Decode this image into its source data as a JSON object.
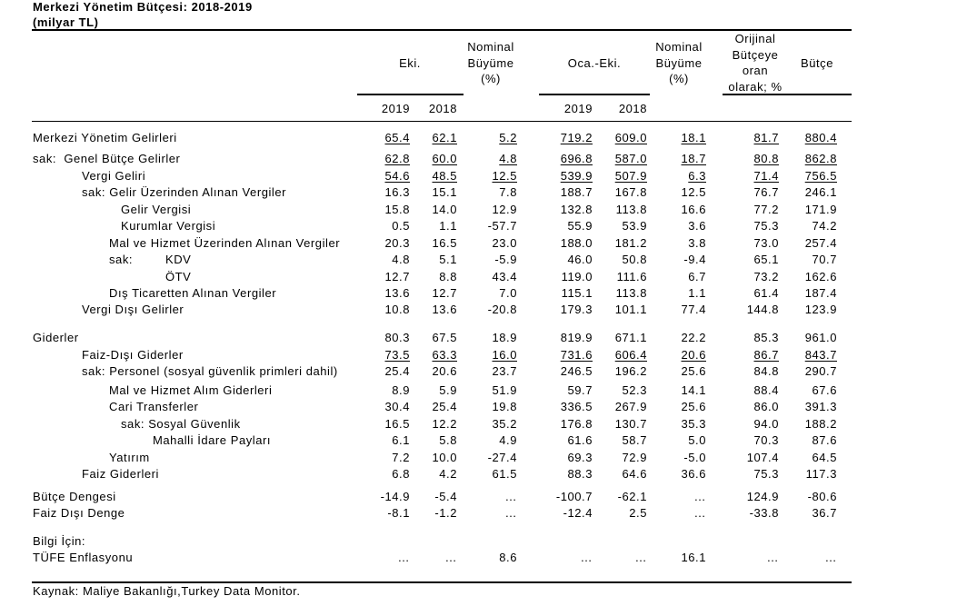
{
  "title": "Merkezi Yönetim Bütçesi: 2018-2019",
  "unit": "(milyar TL)",
  "header": {
    "eki": "Eki.",
    "nominal_growth_eki": [
      "Nominal",
      "Büyüme",
      "(%)"
    ],
    "oca_eki": "Oca.-Eki.",
    "nominal_growth_oca_eki": [
      "Nominal",
      "Büyüme",
      "(%)"
    ],
    "original_budget_ratio": [
      "Orijinal",
      "Bütçeye",
      "oran",
      "olarak; %"
    ],
    "budget": "Bütçe",
    "years": [
      "2019",
      "2018",
      "2019",
      "2018"
    ]
  },
  "sections": [
    {
      "rows": [
        {
          "label": "Merkezi Yönetim Gelirleri",
          "values": [
            "65.4",
            "62.1",
            "5.2",
            "719.2",
            "609.0",
            "18.1",
            "81.7",
            "880.4"
          ]
        }
      ]
    },
    {
      "rows": [
        {
          "label": "sak:  Genel Bütçe Gelirler",
          "values": [
            "62.8",
            "60.0",
            "4.8",
            "696.8",
            "587.0",
            "18.7",
            "80.8",
            "862.8"
          ]
        },
        {
          "label": "Vergi Geliri",
          "values": [
            "54.6",
            "48.5",
            "12.5",
            "539.9",
            "507.9",
            "6.3",
            "71.4",
            "756.5"
          ]
        },
        {
          "label": "sak: Gelir Üzerinden Alınan Vergiler",
          "values": [
            "16.3",
            "15.1",
            "7.8",
            "188.7",
            "167.8",
            "12.5",
            "76.7",
            "246.1"
          ]
        },
        {
          "label": "Gelir Vergisi",
          "values": [
            "15.8",
            "14.0",
            "12.9",
            "132.8",
            "113.8",
            "16.6",
            "77.2",
            "171.9"
          ]
        },
        {
          "label": "Kurumlar Vergisi",
          "values": [
            "0.5",
            "1.1",
            "-57.7",
            "55.9",
            "53.9",
            "3.6",
            "75.3",
            "74.2"
          ]
        },
        {
          "label": "Mal ve Hizmet Üzerinden Alınan Vergiler",
          "values": [
            "20.3",
            "16.5",
            "23.0",
            "188.0",
            "181.2",
            "3.8",
            "73.0",
            "257.4"
          ]
        },
        {
          "prefix": "sak:",
          "label": "KDV",
          "values": [
            "4.8",
            "5.1",
            "-5.9",
            "46.0",
            "50.8",
            "-9.4",
            "65.1",
            "70.7"
          ]
        },
        {
          "label": "ÖTV",
          "values": [
            "12.7",
            "8.8",
            "43.4",
            "119.0",
            "111.6",
            "6.7",
            "73.2",
            "162.6"
          ]
        },
        {
          "label": "Dış Ticaretten Alınan Vergiler",
          "values": [
            "13.6",
            "12.7",
            "7.0",
            "115.1",
            "113.8",
            "1.1",
            "61.4",
            "187.4"
          ]
        },
        {
          "label": "Vergi Dışı Gelirler",
          "values": [
            "10.8",
            "13.6",
            "-20.8",
            "179.3",
            "101.1",
            "77.4",
            "144.8",
            "123.9"
          ]
        }
      ]
    },
    {
      "rows": [
        {
          "label": "Giderler",
          "values": [
            "80.3",
            "67.5",
            "18.9",
            "819.9",
            "671.1",
            "22.2",
            "85.3",
            "961.0"
          ]
        },
        {
          "label": "Faiz-Dışı Giderler",
          "values": [
            "73.5",
            "63.3",
            "16.0",
            "731.6",
            "606.4",
            "20.6",
            "86.7",
            "843.7"
          ]
        },
        {
          "label": "sak: Personel (sosyal güvenlik primleri dahil)",
          "values": [
            "25.4",
            "20.6",
            "23.7",
            "246.5",
            "196.2",
            "25.6",
            "84.8",
            "290.7"
          ]
        },
        {
          "label": "Mal ve Hizmet Alım Giderleri",
          "values": [
            "8.9",
            "5.9",
            "51.9",
            "59.7",
            "52.3",
            "14.1",
            "88.4",
            "67.6"
          ]
        },
        {
          "label": "Cari Transferler",
          "values": [
            "30.4",
            "25.4",
            "19.8",
            "336.5",
            "267.9",
            "25.6",
            "86.0",
            "391.3"
          ]
        },
        {
          "label": "sak: Sosyal Güvenlik",
          "values": [
            "16.5",
            "12.2",
            "35.2",
            "176.8",
            "130.7",
            "35.3",
            "94.0",
            "188.2"
          ]
        },
        {
          "label": "Mahalli İdare Payları",
          "values": [
            "6.1",
            "5.8",
            "4.9",
            "61.6",
            "58.7",
            "5.0",
            "70.3",
            "87.6"
          ]
        },
        {
          "label": "Yatırım",
          "values": [
            "7.2",
            "10.0",
            "-27.4",
            "69.3",
            "72.9",
            "-5.0",
            "107.4",
            "64.5"
          ]
        },
        {
          "label": "Faiz Giderleri",
          "values": [
            "6.8",
            "4.2",
            "61.5",
            "88.3",
            "64.6",
            "36.6",
            "75.3",
            "117.3"
          ]
        }
      ]
    },
    {
      "rows": [
        {
          "label": "Bütçe Dengesi",
          "values": [
            "-14.9",
            "-5.4",
            "…",
            "-100.7",
            "-62.1",
            "…",
            "124.9",
            "-80.6"
          ]
        },
        {
          "label": "Faiz Dışı Denge",
          "values": [
            "-8.1",
            "-1.2",
            "…",
            "-12.4",
            "2.5",
            "…",
            "-33.8",
            "36.7"
          ]
        }
      ]
    },
    {
      "rows": [
        {
          "label": "Bilgi İçin:",
          "values": []
        },
        {
          "label": "TÜFE Enflasyonu",
          "values": [
            "…",
            "…",
            "8.6",
            "…",
            "…",
            "16.1",
            "…",
            "…"
          ]
        }
      ]
    }
  ],
  "source": "Kaynak: Maliye Bakanlığı,Turkey Data Monitor."
}
